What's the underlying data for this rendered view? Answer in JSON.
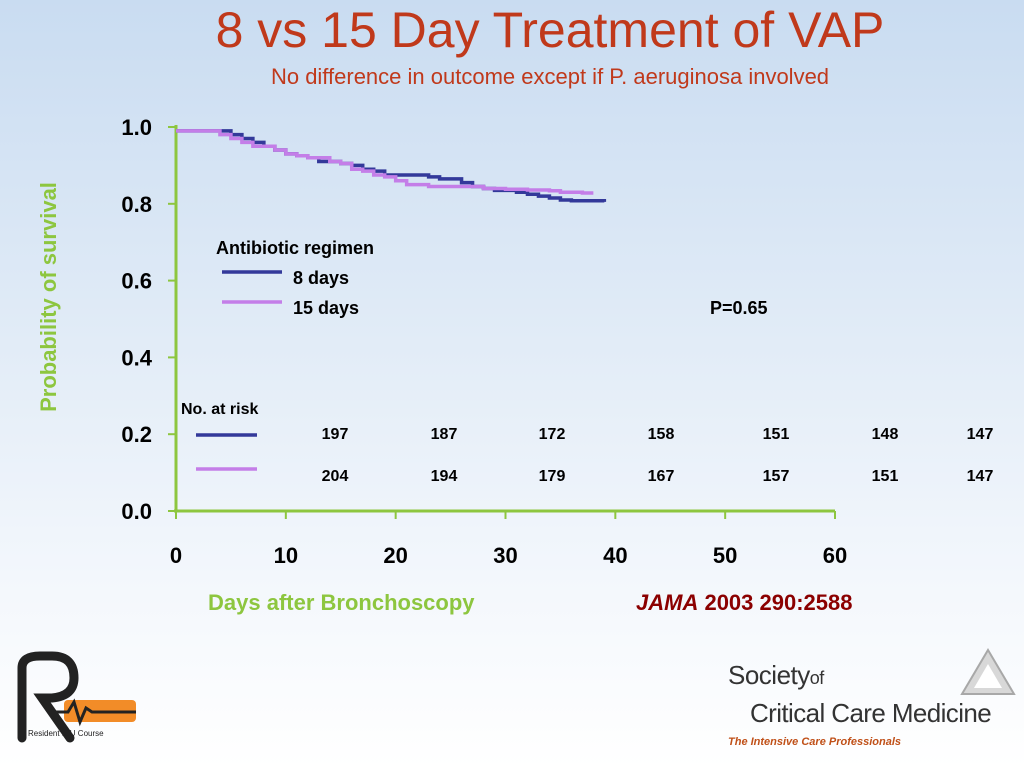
{
  "slide": {
    "title": "8 vs 15 Day Treatment of VAP",
    "subtitle": "No difference in outcome except if P. aeruginosa involved",
    "citation_journal": "JAMA",
    "citation_rest": " 2003 290:2588"
  },
  "chart_data": {
    "type": "line",
    "xlabel": "Days after Bronchoscopy",
    "ylabel": "Probability of survival",
    "xlim": [
      0,
      60
    ],
    "ylim": [
      0,
      1.0
    ],
    "x_ticks": [
      "0",
      "10",
      "20",
      "30",
      "40",
      "50",
      "60"
    ],
    "y_ticks": [
      "0.0",
      "0.2",
      "0.4",
      "0.6",
      "0.8",
      "1.0"
    ],
    "legend_title": "Antibiotic regimen",
    "legend_placement": "center-left",
    "p_value": "P=0.65",
    "series": [
      {
        "name": "8 days",
        "color": "#33399a",
        "points": [
          [
            0,
            0.99
          ],
          [
            4,
            0.99
          ],
          [
            5,
            0.98
          ],
          [
            6,
            0.97
          ],
          [
            7,
            0.96
          ],
          [
            8,
            0.95
          ],
          [
            9,
            0.94
          ],
          [
            10,
            0.93
          ],
          [
            11,
            0.925
          ],
          [
            12,
            0.92
          ],
          [
            13,
            0.91
          ],
          [
            15,
            0.905
          ],
          [
            16,
            0.9
          ],
          [
            17,
            0.89
          ],
          [
            18,
            0.885
          ],
          [
            19,
            0.875
          ],
          [
            23,
            0.87
          ],
          [
            24,
            0.865
          ],
          [
            26,
            0.855
          ],
          [
            27,
            0.845
          ],
          [
            28,
            0.84
          ],
          [
            29,
            0.835
          ],
          [
            31,
            0.83
          ],
          [
            32,
            0.825
          ],
          [
            33,
            0.82
          ],
          [
            34,
            0.815
          ],
          [
            35,
            0.81
          ],
          [
            36,
            0.808
          ],
          [
            39,
            0.805
          ]
        ]
      },
      {
        "name": "15 days",
        "color": "#c47ee8",
        "points": [
          [
            0,
            0.99
          ],
          [
            3,
            0.99
          ],
          [
            4,
            0.98
          ],
          [
            5,
            0.97
          ],
          [
            6,
            0.96
          ],
          [
            7,
            0.95
          ],
          [
            9,
            0.94
          ],
          [
            10,
            0.93
          ],
          [
            11,
            0.925
          ],
          [
            12,
            0.92
          ],
          [
            14,
            0.91
          ],
          [
            15,
            0.905
          ],
          [
            16,
            0.89
          ],
          [
            17,
            0.885
          ],
          [
            18,
            0.875
          ],
          [
            19,
            0.87
          ],
          [
            20,
            0.86
          ],
          [
            21,
            0.85
          ],
          [
            23,
            0.845
          ],
          [
            28,
            0.84
          ],
          [
            30,
            0.838
          ],
          [
            32,
            0.836
          ],
          [
            34,
            0.834
          ],
          [
            35,
            0.83
          ],
          [
            37,
            0.828
          ],
          [
            38,
            0.828
          ]
        ]
      }
    ],
    "at_risk": {
      "label": "No. at risk",
      "rows": [
        {
          "color": "#33399a",
          "values": [
            "197",
            "187",
            "172",
            "158",
            "151",
            "148",
            "147"
          ]
        },
        {
          "color": "#c47ee8",
          "values": [
            "204",
            "194",
            "179",
            "167",
            "157",
            "151",
            "147"
          ]
        }
      ]
    }
  },
  "logos": {
    "ricu_caption": "Resident ICU Course",
    "sccm_society": "Society",
    "sccm_of": "of",
    "sccm_name": "Critical Care Medicine",
    "sccm_tagline": "The Intensive Care Professionals"
  }
}
